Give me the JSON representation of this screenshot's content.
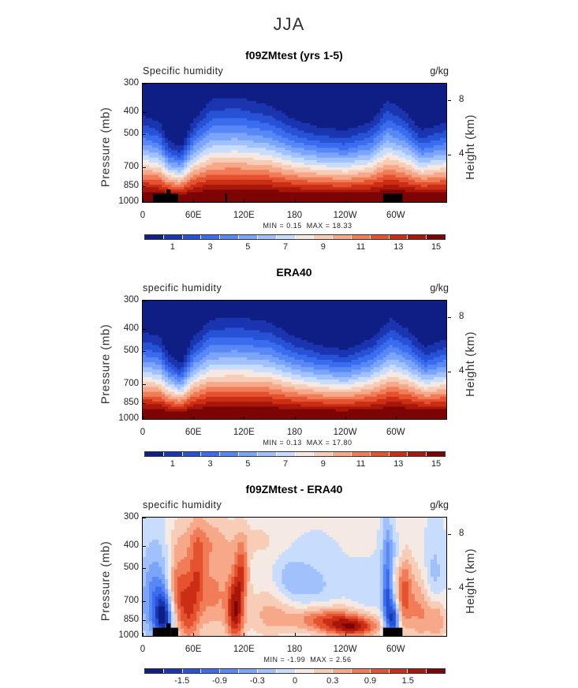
{
  "figure": {
    "season": "JJA"
  },
  "colors": {
    "abs": [
      "#0e1e84",
      "#1b35b0",
      "#2752d6",
      "#3b6cef",
      "#5888f6",
      "#7aa5fa",
      "#a0c1fc",
      "#c8dcfd",
      "#f5e9e4",
      "#f8cdb8",
      "#f6a889",
      "#f07d58",
      "#e55230",
      "#cb2e15",
      "#a9170b",
      "#7d0505"
    ],
    "diff": [
      "#0e1e84",
      "#1b35b0",
      "#2752d6",
      "#3b6cef",
      "#5888f6",
      "#7aa5fa",
      "#a0c1fc",
      "#c8dcfd",
      "#f5e9e4",
      "#f8cdb8",
      "#f6a889",
      "#f07d58",
      "#e55230",
      "#cb2e15",
      "#a9170b",
      "#7d0505"
    ]
  },
  "chart_data": [
    {
      "type": "heatmap",
      "title": "f09ZMtest (yrs 1-5)",
      "variable_label": "Specific humidity",
      "units": "g/kg",
      "ylabel": "Pressure (mb)",
      "ylabel_right": "Height (km)",
      "yticks": [
        "300",
        "400",
        "500",
        "700",
        "850",
        "1000"
      ],
      "ytick_values": [
        300,
        400,
        500,
        700,
        850,
        1000
      ],
      "ylim": [
        1000,
        300
      ],
      "yticks_right": [
        "8",
        "4"
      ],
      "xticks": [
        "0",
        "60E",
        "120E",
        "180",
        "120W",
        "60W"
      ],
      "xtick_values": [
        0,
        60,
        120,
        180,
        240,
        300
      ],
      "xlim": [
        0,
        360
      ],
      "min_label": "MIN =    0.15",
      "max_label": "MAX =   18.33",
      "colorbar_labels": [
        "1",
        "3",
        "5",
        "7",
        "9",
        "11",
        "13",
        "15"
      ],
      "kind": "abs",
      "profile_top_hpa": [
        [
          0,
          400
        ],
        [
          20,
          430
        ],
        [
          30,
          520
        ],
        [
          45,
          560
        ],
        [
          60,
          420
        ],
        [
          80,
          340
        ],
        [
          110,
          330
        ],
        [
          130,
          345
        ],
        [
          150,
          360
        ],
        [
          180,
          420
        ],
        [
          210,
          455
        ],
        [
          240,
          470
        ],
        [
          270,
          430
        ],
        [
          290,
          340
        ],
        [
          310,
          380
        ],
        [
          330,
          470
        ],
        [
          360,
          430
        ]
      ],
      "terrain": [
        [
          12,
          28,
          920
        ],
        [
          28,
          33,
          880
        ],
        [
          33,
          42,
          920
        ],
        [
          98,
          100,
          920
        ],
        [
          285,
          308,
          920
        ]
      ]
    },
    {
      "type": "heatmap",
      "title": "ERA40",
      "variable_label": "specific humidity",
      "units": "g/kg",
      "ylabel": "Pressure (mb)",
      "ylabel_right": "Height (km)",
      "yticks": [
        "300",
        "400",
        "500",
        "700",
        "850",
        "1000"
      ],
      "ytick_values": [
        300,
        400,
        500,
        700,
        850,
        1000
      ],
      "ylim": [
        1000,
        300
      ],
      "yticks_right": [
        "8",
        "4"
      ],
      "xticks": [
        "0",
        "60E",
        "120E",
        "180",
        "120W",
        "60W"
      ],
      "xtick_values": [
        0,
        60,
        120,
        180,
        240,
        300
      ],
      "xlim": [
        0,
        360
      ],
      "min_label": "MIN =    0.13",
      "max_label": "MAX =   17.80",
      "colorbar_labels": [
        "1",
        "3",
        "5",
        "7",
        "9",
        "11",
        "13",
        "15"
      ],
      "kind": "abs",
      "profile_top_hpa": [
        [
          0,
          400
        ],
        [
          20,
          420
        ],
        [
          30,
          500
        ],
        [
          45,
          560
        ],
        [
          60,
          420
        ],
        [
          80,
          350
        ],
        [
          110,
          340
        ],
        [
          130,
          350
        ],
        [
          150,
          360
        ],
        [
          180,
          420
        ],
        [
          210,
          460
        ],
        [
          240,
          480
        ],
        [
          270,
          430
        ],
        [
          295,
          345
        ],
        [
          315,
          390
        ],
        [
          335,
          470
        ],
        [
          360,
          430
        ]
      ],
      "terrain": []
    },
    {
      "type": "heatmap",
      "title": "f09ZMtest - ERA40",
      "variable_label": "specific humidity",
      "units": "g/kg",
      "ylabel": "Pressure (mb)",
      "ylabel_right": "Height (km)",
      "yticks": [
        "300",
        "400",
        "500",
        "700",
        "850",
        "1000"
      ],
      "ytick_values": [
        300,
        400,
        500,
        700,
        850,
        1000
      ],
      "ylim": [
        1000,
        300
      ],
      "yticks_right": [
        "8",
        "4"
      ],
      "xticks": [
        "0",
        "60E",
        "120E",
        "180",
        "120W",
        "60W"
      ],
      "xtick_values": [
        0,
        60,
        120,
        180,
        240,
        300
      ],
      "xlim": [
        0,
        360
      ],
      "min_label": "MIN =  -1.99",
      "max_label": "MAX =    2.56",
      "colorbar_labels": [
        "-1.5",
        "-0.9",
        "-0.3",
        "0",
        "0.3",
        "0.9",
        "1.5"
      ],
      "colorbar_label_slots": [
        1,
        3,
        5,
        7,
        9,
        11,
        13
      ],
      "kind": "diff",
      "anomalies": [
        [
          15,
          700,
          18,
          300,
          -1.2
        ],
        [
          25,
          830,
          10,
          180,
          -1.8
        ],
        [
          40,
          620,
          12,
          250,
          1.0
        ],
        [
          55,
          780,
          14,
          300,
          1.3
        ],
        [
          65,
          500,
          10,
          200,
          0.8
        ],
        [
          85,
          650,
          20,
          300,
          0.9
        ],
        [
          110,
          780,
          10,
          260,
          1.9
        ],
        [
          118,
          520,
          8,
          150,
          1.1
        ],
        [
          150,
          800,
          25,
          200,
          0.6
        ],
        [
          175,
          560,
          20,
          120,
          -0.5
        ],
        [
          220,
          850,
          45,
          110,
          1.3
        ],
        [
          250,
          920,
          30,
          90,
          1.5
        ],
        [
          205,
          600,
          30,
          180,
          -0.4
        ],
        [
          265,
          650,
          20,
          150,
          -0.3
        ],
        [
          290,
          700,
          6,
          350,
          -1.6
        ],
        [
          298,
          850,
          6,
          150,
          -1.9
        ],
        [
          310,
          650,
          10,
          250,
          1.2
        ],
        [
          330,
          780,
          15,
          260,
          0.9
        ],
        [
          345,
          560,
          12,
          200,
          -0.6
        ],
        [
          350,
          850,
          10,
          200,
          0.7
        ],
        [
          140,
          380,
          30,
          80,
          0.3
        ],
        [
          75,
          380,
          30,
          80,
          0.4
        ],
        [
          300,
          420,
          15,
          80,
          -0.4
        ]
      ],
      "terrain": [
        [
          12,
          28,
          920
        ],
        [
          28,
          33,
          880
        ],
        [
          33,
          42,
          920
        ],
        [
          285,
          308,
          920
        ]
      ]
    }
  ]
}
